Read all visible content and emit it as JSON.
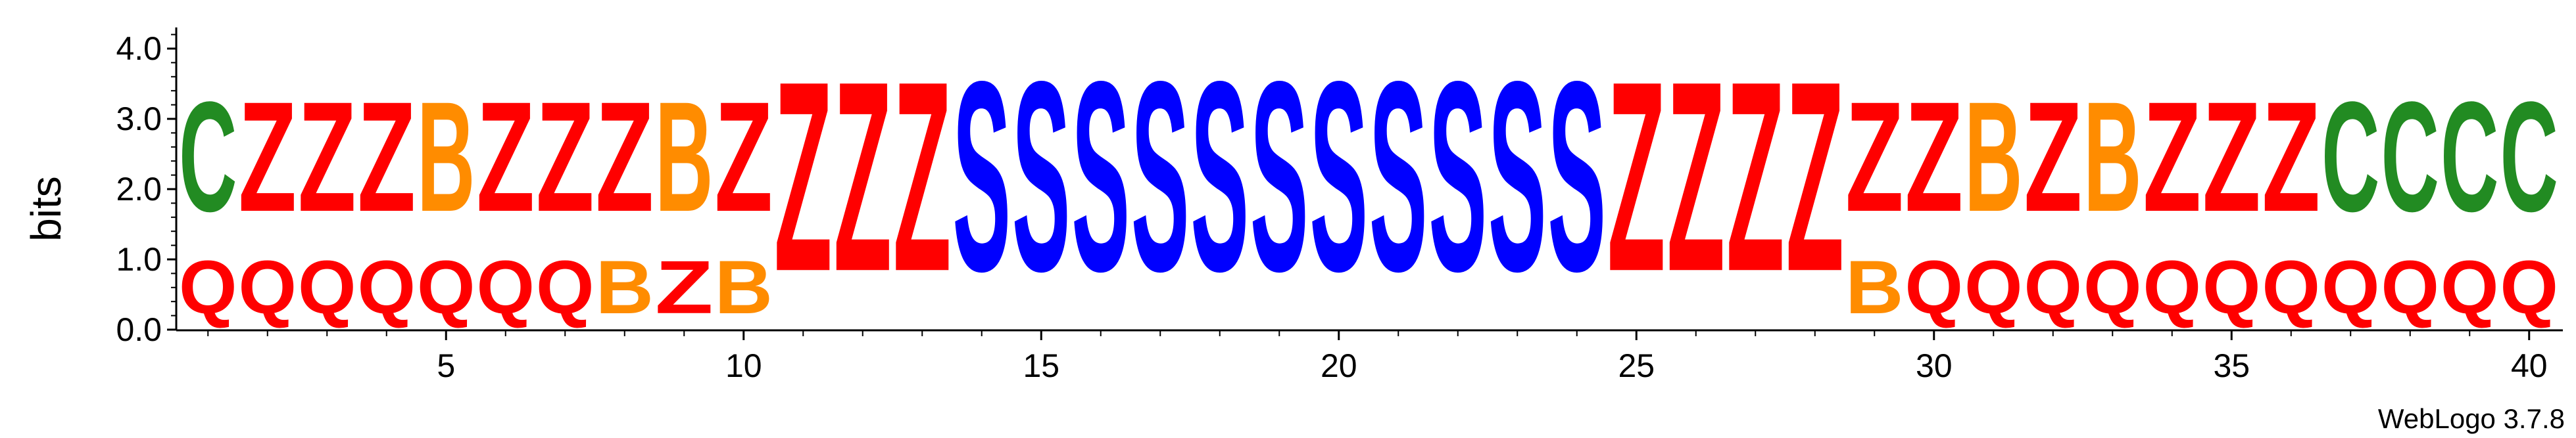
{
  "chart_data": {
    "type": "sequence-logo",
    "ylabel": "bits",
    "ylim": [
      0,
      4.32
    ],
    "y_ticks": [
      "0.0",
      "1.0",
      "2.0",
      "3.0",
      "4.0"
    ],
    "x_ticks": [
      "5",
      "10",
      "15",
      "20",
      "25",
      "30",
      "35",
      "40"
    ],
    "attribution": "WebLogo 3.7.8",
    "colors": {
      "C": "#228b22",
      "Z": "#ff0000",
      "Q": "#ff0000",
      "B": "#ff8c00",
      "S": "#0000ff"
    },
    "positions": [
      {
        "pos": 1,
        "stack": [
          {
            "letter": "Q",
            "bits": 1.2
          },
          {
            "letter": "C",
            "bits": 2.5
          }
        ]
      },
      {
        "pos": 2,
        "stack": [
          {
            "letter": "Q",
            "bits": 1.2
          },
          {
            "letter": "Z",
            "bits": 2.5
          }
        ]
      },
      {
        "pos": 3,
        "stack": [
          {
            "letter": "Q",
            "bits": 1.2
          },
          {
            "letter": "Z",
            "bits": 2.5
          }
        ]
      },
      {
        "pos": 4,
        "stack": [
          {
            "letter": "Q",
            "bits": 1.2
          },
          {
            "letter": "Z",
            "bits": 2.5
          }
        ]
      },
      {
        "pos": 5,
        "stack": [
          {
            "letter": "Q",
            "bits": 1.2
          },
          {
            "letter": "B",
            "bits": 2.5
          }
        ]
      },
      {
        "pos": 6,
        "stack": [
          {
            "letter": "Q",
            "bits": 1.2
          },
          {
            "letter": "Z",
            "bits": 2.5
          }
        ]
      },
      {
        "pos": 7,
        "stack": [
          {
            "letter": "Q",
            "bits": 1.2
          },
          {
            "letter": "Z",
            "bits": 2.5
          }
        ]
      },
      {
        "pos": 8,
        "stack": [
          {
            "letter": "B",
            "bits": 1.2
          },
          {
            "letter": "Z",
            "bits": 2.5
          }
        ]
      },
      {
        "pos": 9,
        "stack": [
          {
            "letter": "Z",
            "bits": 1.2
          },
          {
            "letter": "B",
            "bits": 2.5
          }
        ]
      },
      {
        "pos": 10,
        "stack": [
          {
            "letter": "B",
            "bits": 1.2
          },
          {
            "letter": "Z",
            "bits": 2.5
          }
        ]
      },
      {
        "pos": 11,
        "stack": [
          {
            "letter": "Z",
            "bits": 4.32
          }
        ]
      },
      {
        "pos": 12,
        "stack": [
          {
            "letter": "Z",
            "bits": 4.32
          }
        ]
      },
      {
        "pos": 13,
        "stack": [
          {
            "letter": "Z",
            "bits": 4.32
          }
        ]
      },
      {
        "pos": 14,
        "stack": [
          {
            "letter": "S",
            "bits": 4.32
          }
        ]
      },
      {
        "pos": 15,
        "stack": [
          {
            "letter": "S",
            "bits": 4.32
          }
        ]
      },
      {
        "pos": 16,
        "stack": [
          {
            "letter": "S",
            "bits": 4.32
          }
        ]
      },
      {
        "pos": 17,
        "stack": [
          {
            "letter": "S",
            "bits": 4.32
          }
        ]
      },
      {
        "pos": 18,
        "stack": [
          {
            "letter": "S",
            "bits": 4.32
          }
        ]
      },
      {
        "pos": 19,
        "stack": [
          {
            "letter": "S",
            "bits": 4.32
          }
        ]
      },
      {
        "pos": 20,
        "stack": [
          {
            "letter": "S",
            "bits": 4.32
          }
        ]
      },
      {
        "pos": 21,
        "stack": [
          {
            "letter": "S",
            "bits": 4.32
          }
        ]
      },
      {
        "pos": 22,
        "stack": [
          {
            "letter": "S",
            "bits": 4.32
          }
        ]
      },
      {
        "pos": 23,
        "stack": [
          {
            "letter": "S",
            "bits": 4.32
          }
        ]
      },
      {
        "pos": 24,
        "stack": [
          {
            "letter": "S",
            "bits": 4.32
          }
        ]
      },
      {
        "pos": 25,
        "stack": [
          {
            "letter": "Z",
            "bits": 4.32
          }
        ]
      },
      {
        "pos": 26,
        "stack": [
          {
            "letter": "Z",
            "bits": 4.32
          }
        ]
      },
      {
        "pos": 27,
        "stack": [
          {
            "letter": "Z",
            "bits": 4.32
          }
        ]
      },
      {
        "pos": 28,
        "stack": [
          {
            "letter": "Z",
            "bits": 4.32
          }
        ]
      },
      {
        "pos": 29,
        "stack": [
          {
            "letter": "B",
            "bits": 1.2
          },
          {
            "letter": "Z",
            "bits": 2.5
          }
        ]
      },
      {
        "pos": 30,
        "stack": [
          {
            "letter": "Q",
            "bits": 1.2
          },
          {
            "letter": "Z",
            "bits": 2.5
          }
        ]
      },
      {
        "pos": 31,
        "stack": [
          {
            "letter": "Q",
            "bits": 1.2
          },
          {
            "letter": "B",
            "bits": 2.5
          }
        ]
      },
      {
        "pos": 32,
        "stack": [
          {
            "letter": "Q",
            "bits": 1.2
          },
          {
            "letter": "Z",
            "bits": 2.5
          }
        ]
      },
      {
        "pos": 33,
        "stack": [
          {
            "letter": "Q",
            "bits": 1.2
          },
          {
            "letter": "B",
            "bits": 2.5
          }
        ]
      },
      {
        "pos": 34,
        "stack": [
          {
            "letter": "Q",
            "bits": 1.2
          },
          {
            "letter": "Z",
            "bits": 2.5
          }
        ]
      },
      {
        "pos": 35,
        "stack": [
          {
            "letter": "Q",
            "bits": 1.2
          },
          {
            "letter": "Z",
            "bits": 2.5
          }
        ]
      },
      {
        "pos": 36,
        "stack": [
          {
            "letter": "Q",
            "bits": 1.2
          },
          {
            "letter": "Z",
            "bits": 2.5
          }
        ]
      },
      {
        "pos": 37,
        "stack": [
          {
            "letter": "Q",
            "bits": 1.2
          },
          {
            "letter": "C",
            "bits": 2.5
          }
        ]
      },
      {
        "pos": 38,
        "stack": [
          {
            "letter": "Q",
            "bits": 1.2
          },
          {
            "letter": "C",
            "bits": 2.5
          }
        ]
      },
      {
        "pos": 39,
        "stack": [
          {
            "letter": "Q",
            "bits": 1.2
          },
          {
            "letter": "C",
            "bits": 2.5
          }
        ]
      },
      {
        "pos": 40,
        "stack": [
          {
            "letter": "Q",
            "bits": 1.2
          },
          {
            "letter": "C",
            "bits": 2.5
          }
        ]
      }
    ]
  }
}
